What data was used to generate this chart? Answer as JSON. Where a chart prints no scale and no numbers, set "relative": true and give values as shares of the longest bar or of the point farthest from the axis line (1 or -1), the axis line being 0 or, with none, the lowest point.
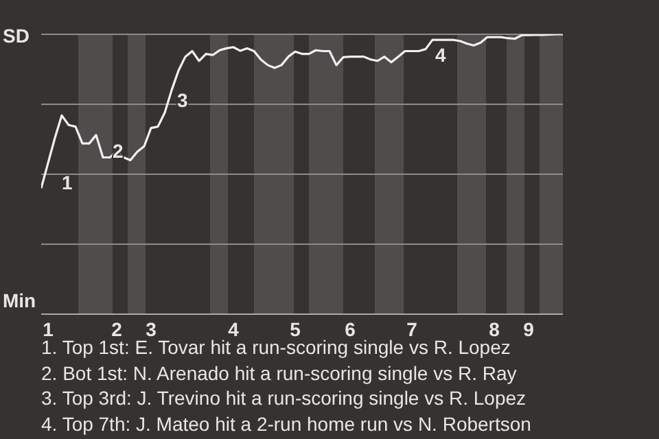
{
  "chart_data": {
    "type": "line",
    "relative": true,
    "grid": "y",
    "categories": [
      null,
      "1",
      null,
      null,
      null,
      null,
      null,
      null,
      null,
      null,
      null,
      "2",
      null,
      null,
      null,
      null,
      "3",
      null,
      null,
      null,
      null,
      null,
      null,
      null,
      null,
      null,
      null,
      null,
      "4",
      null,
      null,
      null,
      null,
      null,
      null,
      null,
      null,
      "5",
      null,
      null,
      null,
      null,
      null,
      null,
      null,
      "6",
      null,
      null,
      null,
      null,
      null,
      null,
      null,
      null,
      "7",
      null,
      null,
      null,
      null,
      null,
      null,
      null,
      null,
      null,
      null,
      null,
      "8",
      null,
      null,
      null,
      null,
      "9",
      null,
      null,
      null,
      null,
      null
    ],
    "series": [
      {
        "color": "#f0f0f0",
        "values": [
          0.45,
          0.54,
          0.63,
          0.71,
          0.676,
          0.67,
          0.61,
          0.61,
          0.64,
          0.56,
          0.56,
          0.58,
          0.56,
          0.55,
          0.58,
          0.6,
          0.665,
          0.67,
          0.72,
          0.8,
          0.87,
          0.92,
          0.94,
          0.905,
          0.93,
          0.926,
          0.943,
          0.95,
          0.954,
          0.941,
          0.95,
          0.94,
          0.91,
          0.89,
          0.88,
          0.89,
          0.92,
          0.938,
          0.93,
          0.93,
          0.943,
          0.94,
          0.94,
          0.89,
          0.918,
          0.92,
          0.92,
          0.92,
          0.91,
          0.905,
          0.92,
          0.9,
          0.92,
          0.94,
          0.94,
          0.94,
          0.947,
          0.98,
          0.98,
          0.98,
          0.98,
          0.976,
          0.967,
          0.96,
          0.97,
          0.99,
          0.99,
          0.99,
          0.986,
          0.984,
          0.997,
          0.997,
          0.998,
          0.998,
          0.999,
          1,
          1
        ]
      }
    ],
    "annotations": [
      "SD",
      "Min",
      "1",
      "2",
      "3",
      "4",
      "1. Top 1st: E. Tovar hit a run-scoring single vs R. Lopez",
      "2. Bot 1st: N. Arenado hit a run-scoring single vs R. Ray",
      "3. Top 3rd: J. Trevino hit a run-scoring single vs R. Lopez",
      "4. Top 7th: J. Mateo hit a 2-run home run vs N. Robertson"
    ]
  }
}
